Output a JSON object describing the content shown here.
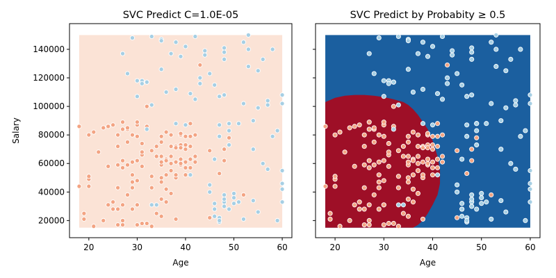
{
  "palette": {
    "class0": "#f3a483",
    "class1": "#a6cfe4",
    "region_pale": "#fbe3d6",
    "region_red": "#9e0f27",
    "region_blue": "#1b5f9f",
    "edge": "#ffffff"
  },
  "chart_data": [
    {
      "type": "scatter",
      "title": "SVC Predict C=1.0E-05",
      "xlabel": "Age",
      "ylabel": "Salary",
      "xlim": [
        16,
        62
      ],
      "ylim": [
        8000,
        158000
      ],
      "xticks": [
        20,
        30,
        40,
        50,
        60
      ],
      "yticks": [
        20000,
        40000,
        60000,
        80000,
        100000,
        120000,
        140000
      ],
      "grid": false,
      "legend": "none",
      "background_region": "all points predicted class 0 (pale), x 18–60, y 15000–150000",
      "series": [
        {
          "class": 0,
          "color": "#f3a483",
          "x": [
            18,
            19,
            19,
            20,
            20,
            20,
            21,
            21,
            22,
            23,
            23,
            24,
            24,
            24,
            25,
            25,
            25,
            26,
            26,
            26,
            26,
            26,
            27,
            27,
            27,
            27,
            27,
            27,
            28,
            28,
            28,
            28,
            28,
            29,
            29,
            29,
            29,
            29,
            29,
            30,
            30,
            30,
            30,
            30,
            30,
            30,
            31,
            31,
            31,
            31,
            31,
            32,
            32,
            32,
            32,
            33,
            33,
            33,
            34,
            34,
            34,
            35,
            35,
            35,
            35,
            35,
            35,
            35,
            35,
            36,
            36,
            36,
            36,
            36,
            37,
            37,
            37,
            37,
            37,
            38,
            38,
            38,
            38,
            38,
            39,
            39,
            39,
            39,
            39,
            39,
            40,
            40,
            40,
            40,
            40,
            41,
            41,
            41,
            41,
            42,
            42,
            42,
            45,
            45,
            46,
            47,
            48,
            48,
            49,
            52,
            18,
            20,
            26,
            27,
            30,
            33,
            35,
            36,
            37,
            38,
            39,
            40,
            41,
            43
          ],
          "y": [
            86000,
            25000,
            21000,
            80000,
            44000,
            49000,
            82000,
            16000,
            68000,
            20000,
            85000,
            58000,
            31000,
            86000,
            28000,
            33000,
            87000,
            17000,
            72000,
            59000,
            43000,
            80000,
            62000,
            57000,
            84000,
            89000,
            31000,
            17000,
            84000,
            59000,
            75000,
            85000,
            38000,
            80000,
            52000,
            61000,
            47000,
            43000,
            28000,
            79000,
            62000,
            87000,
            17000,
            48000,
            31000,
            89000,
            18000,
            58000,
            66000,
            74000,
            68000,
            86000,
            18000,
            117000,
            100000,
            51000,
            43000,
            69000,
            25000,
            72000,
            65000,
            59000,
            75000,
            23000,
            79000,
            61000,
            50000,
            47000,
            65000,
            33000,
            52000,
            63000,
            62000,
            82000,
            55000,
            72000,
            65000,
            80000,
            39000,
            72000,
            50000,
            52000,
            71000,
            61000,
            80000,
            73000,
            59000,
            63000,
            71000,
            81000,
            57000,
            61000,
            79000,
            70000,
            52000,
            72000,
            63000,
            79000,
            57000,
            65000,
            80000,
            61000,
            69000,
            22000,
            28000,
            53000,
            62000,
            70000,
            78000,
            38000,
            44000,
            51000,
            28000,
            20000,
            31000,
            16000,
            35000,
            42000,
            60000,
            21000,
            60000,
            73000,
            88000,
            129000
          ]
        },
        {
          "class": 1,
          "color": "#a6cfe4",
          "x": [
            27,
            28,
            29,
            30,
            31,
            31,
            32,
            32,
            33,
            33,
            35,
            35,
            35,
            36,
            37,
            38,
            38,
            39,
            40,
            41,
            42,
            43,
            44,
            44,
            45,
            45,
            46,
            46,
            46,
            47,
            47,
            47,
            48,
            48,
            48,
            48,
            48,
            48,
            48,
            49,
            49,
            49,
            50,
            50,
            51,
            51,
            52,
            52,
            53,
            53,
            54,
            54,
            54,
            55,
            55,
            56,
            56,
            57,
            57,
            58,
            58,
            59,
            59,
            60,
            60,
            60,
            60,
            60,
            30,
            33,
            34,
            38,
            40,
            41,
            42,
            43,
            45,
            46,
            46,
            47,
            47,
            47,
            48,
            48,
            49,
            49,
            50,
            52,
            53,
            55,
            57,
            60
          ],
          "y": [
            137000,
            123000,
            148000,
            107000,
            118000,
            116000,
            117000,
            84000,
            149000,
            101000,
            147000,
            146000,
            126000,
            110000,
            137000,
            145000,
            112000,
            135000,
            142000,
            109000,
            149000,
            116000,
            139000,
            136000,
            123000,
            45000,
            23000,
            28000,
            32000,
            87000,
            22000,
            19000,
            33000,
            30000,
            30000,
            35000,
            133000,
            138000,
            141000,
            28000,
            83000,
            88000,
            32000,
            36000,
            88000,
            33000,
            21000,
            102000,
            150000,
            140000,
            34000,
            70000,
            90000,
            26000,
            125000,
            60000,
            133000,
            56000,
            101000,
            79000,
            140000,
            20000,
            83000,
            33000,
            42000,
            102000,
            108000,
            46000,
            118000,
            31000,
            31000,
            88000,
            87000,
            52000,
            105000,
            120000,
            40000,
            63000,
            115000,
            107000,
            79000,
            20000,
            108000,
            38000,
            73000,
            88000,
            39000,
            145000,
            128000,
            99000,
            104000,
            55000
          ]
        }
      ]
    },
    {
      "type": "scatter",
      "title": "SVC Predict by Probabity ≥ 0.5",
      "xlabel": "Age",
      "ylabel": "",
      "xlim": [
        16,
        62
      ],
      "ylim": [
        8000,
        158000
      ],
      "xticks": [
        20,
        30,
        40,
        50,
        60
      ],
      "yticks": [
        20000,
        40000,
        60000,
        80000,
        100000,
        120000,
        140000
      ],
      "grid": false,
      "legend": "none",
      "background_region": "predicted class 0 (red) lower-left, class 1 (blue) elsewhere",
      "decision_boundary": {
        "x": [
          18,
          19,
          20,
          22,
          24,
          26,
          28,
          30,
          32,
          34,
          35,
          36,
          37,
          38,
          39,
          40,
          41,
          41.5,
          41.5,
          41,
          40,
          39,
          38,
          37,
          36,
          35
        ],
        "y": [
          103000,
          104500,
          106000,
          107500,
          108000,
          108000,
          107500,
          106500,
          105000,
          103000,
          101000,
          98000,
          94000,
          89000,
          84000,
          76000,
          65000,
          55000,
          46000,
          38000,
          31000,
          25000,
          20000,
          17000,
          15000,
          15000
        ]
      },
      "series": [
        {
          "class": 0,
          "color": "#f3a483",
          "x": [
            18,
            19,
            19,
            20,
            20,
            20,
            21,
            21,
            22,
            23,
            23,
            24,
            24,
            24,
            25,
            25,
            25,
            26,
            26,
            26,
            26,
            26,
            27,
            27,
            27,
            27,
            27,
            27,
            28,
            28,
            28,
            28,
            28,
            29,
            29,
            29,
            29,
            29,
            29,
            30,
            30,
            30,
            30,
            30,
            30,
            30,
            31,
            31,
            31,
            31,
            31,
            32,
            32,
            32,
            32,
            33,
            33,
            33,
            34,
            34,
            34,
            35,
            35,
            35,
            35,
            35,
            35,
            35,
            35,
            36,
            36,
            36,
            36,
            36,
            37,
            37,
            37,
            37,
            37,
            38,
            38,
            38,
            38,
            38,
            39,
            39,
            39,
            39,
            39,
            39,
            40,
            40,
            40,
            40,
            40,
            41,
            41,
            41,
            41,
            42,
            42,
            42,
            45,
            45,
            46,
            47,
            48,
            48,
            49,
            52,
            18,
            20,
            26,
            27,
            30,
            33,
            35,
            36,
            37,
            38,
            39,
            40,
            41,
            43
          ],
          "y": [
            86000,
            25000,
            21000,
            80000,
            44000,
            49000,
            82000,
            16000,
            68000,
            20000,
            85000,
            58000,
            31000,
            86000,
            28000,
            33000,
            87000,
            17000,
            72000,
            59000,
            43000,
            80000,
            62000,
            57000,
            84000,
            89000,
            31000,
            17000,
            84000,
            59000,
            75000,
            85000,
            38000,
            80000,
            52000,
            61000,
            47000,
            43000,
            28000,
            79000,
            62000,
            87000,
            17000,
            48000,
            31000,
            89000,
            18000,
            58000,
            66000,
            74000,
            68000,
            86000,
            18000,
            117000,
            100000,
            51000,
            43000,
            69000,
            25000,
            72000,
            65000,
            59000,
            75000,
            23000,
            79000,
            61000,
            50000,
            47000,
            65000,
            33000,
            52000,
            63000,
            62000,
            82000,
            55000,
            72000,
            65000,
            80000,
            39000,
            72000,
            50000,
            52000,
            71000,
            61000,
            80000,
            73000,
            59000,
            63000,
            71000,
            81000,
            57000,
            61000,
            79000,
            70000,
            52000,
            72000,
            63000,
            79000,
            57000,
            65000,
            80000,
            61000,
            69000,
            22000,
            28000,
            53000,
            62000,
            70000,
            78000,
            38000,
            44000,
            51000,
            28000,
            20000,
            31000,
            16000,
            35000,
            42000,
            60000,
            21000,
            60000,
            73000,
            88000,
            129000
          ]
        },
        {
          "class": 1,
          "color": "#a6cfe4",
          "x": [
            27,
            28,
            29,
            30,
            31,
            31,
            32,
            32,
            33,
            33,
            35,
            35,
            35,
            36,
            37,
            38,
            38,
            39,
            40,
            41,
            42,
            43,
            44,
            44,
            45,
            45,
            46,
            46,
            46,
            47,
            47,
            47,
            48,
            48,
            48,
            48,
            48,
            48,
            48,
            49,
            49,
            49,
            50,
            50,
            51,
            51,
            52,
            52,
            53,
            53,
            54,
            54,
            54,
            55,
            55,
            56,
            56,
            57,
            57,
            58,
            58,
            59,
            59,
            60,
            60,
            60,
            60,
            60,
            30,
            33,
            34,
            38,
            40,
            41,
            42,
            43,
            45,
            46,
            46,
            47,
            47,
            47,
            48,
            48,
            49,
            49,
            50,
            52,
            53,
            55,
            57,
            60
          ],
          "y": [
            137000,
            123000,
            148000,
            107000,
            118000,
            116000,
            117000,
            84000,
            149000,
            101000,
            147000,
            146000,
            126000,
            110000,
            137000,
            145000,
            112000,
            135000,
            142000,
            109000,
            149000,
            116000,
            139000,
            136000,
            123000,
            45000,
            23000,
            28000,
            32000,
            87000,
            22000,
            19000,
            33000,
            30000,
            30000,
            35000,
            133000,
            138000,
            141000,
            28000,
            83000,
            88000,
            32000,
            36000,
            88000,
            33000,
            21000,
            102000,
            150000,
            140000,
            34000,
            70000,
            90000,
            26000,
            125000,
            60000,
            133000,
            56000,
            101000,
            79000,
            140000,
            20000,
            83000,
            33000,
            42000,
            102000,
            108000,
            46000,
            118000,
            31000,
            31000,
            88000,
            87000,
            52000,
            105000,
            120000,
            40000,
            63000,
            115000,
            107000,
            79000,
            20000,
            108000,
            38000,
            73000,
            88000,
            39000,
            145000,
            128000,
            99000,
            104000,
            55000
          ]
        }
      ]
    }
  ]
}
